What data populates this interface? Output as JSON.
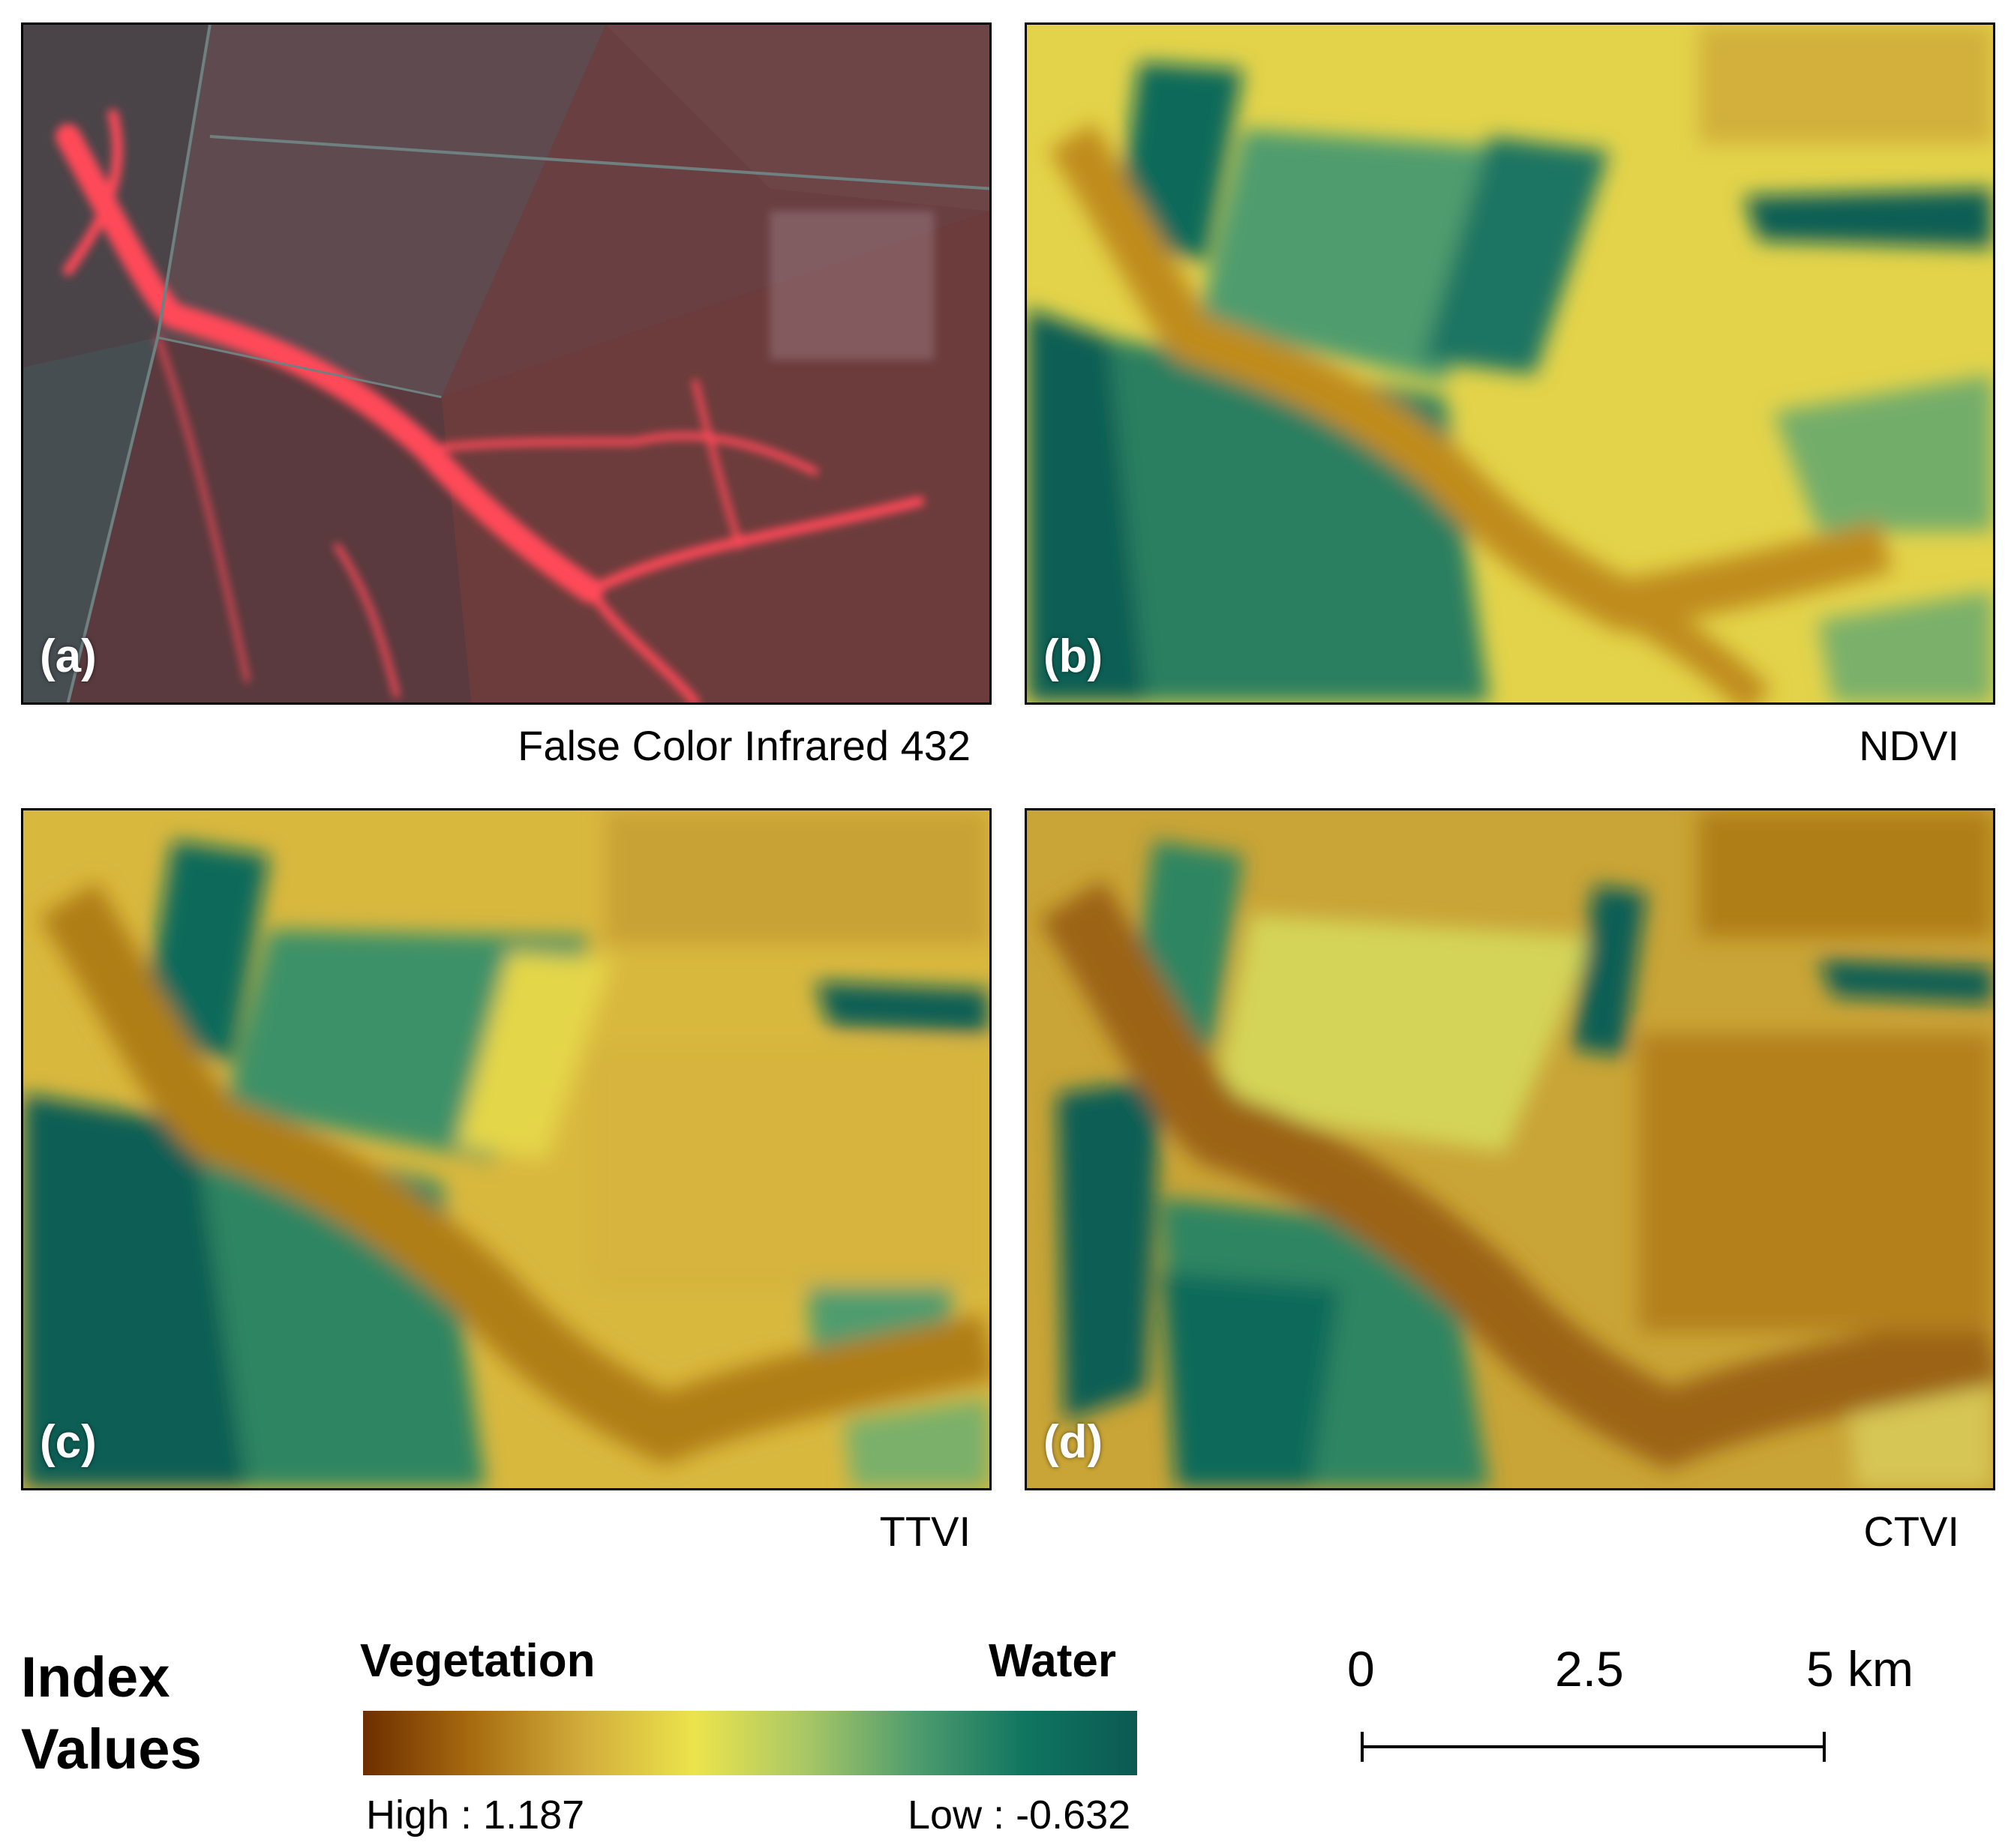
{
  "panels": [
    {
      "letter": "(a)",
      "caption": "False Color Infrared 432"
    },
    {
      "letter": "(b)",
      "caption": "NDVI"
    },
    {
      "letter": "(c)",
      "caption": "TTVI"
    },
    {
      "letter": "(d)",
      "caption": "CTVI"
    }
  ],
  "legend": {
    "title_line1": "Index",
    "title_line2": "Values",
    "left_label": "Vegetation",
    "right_label": "Water",
    "high_label": "High : 1.187",
    "low_label": "Low : -0.632",
    "high_value": 1.187,
    "low_value": -0.632,
    "ramp_colors": [
      "#6e2e00",
      "#a86c10",
      "#d2ad3c",
      "#ece44c",
      "#a9c766",
      "#4f9c6e",
      "#0f7560",
      "#0b5a52"
    ]
  },
  "scale_bar": {
    "ticks": [
      "0",
      "2.5",
      "5 km"
    ]
  },
  "colors": {
    "fci_base": "#6e3d3f",
    "fci_red": "#ff4a55",
    "index_yellow": "#e4d648",
    "index_brown": "#b07e16",
    "index_teal": "#0d5f55"
  }
}
